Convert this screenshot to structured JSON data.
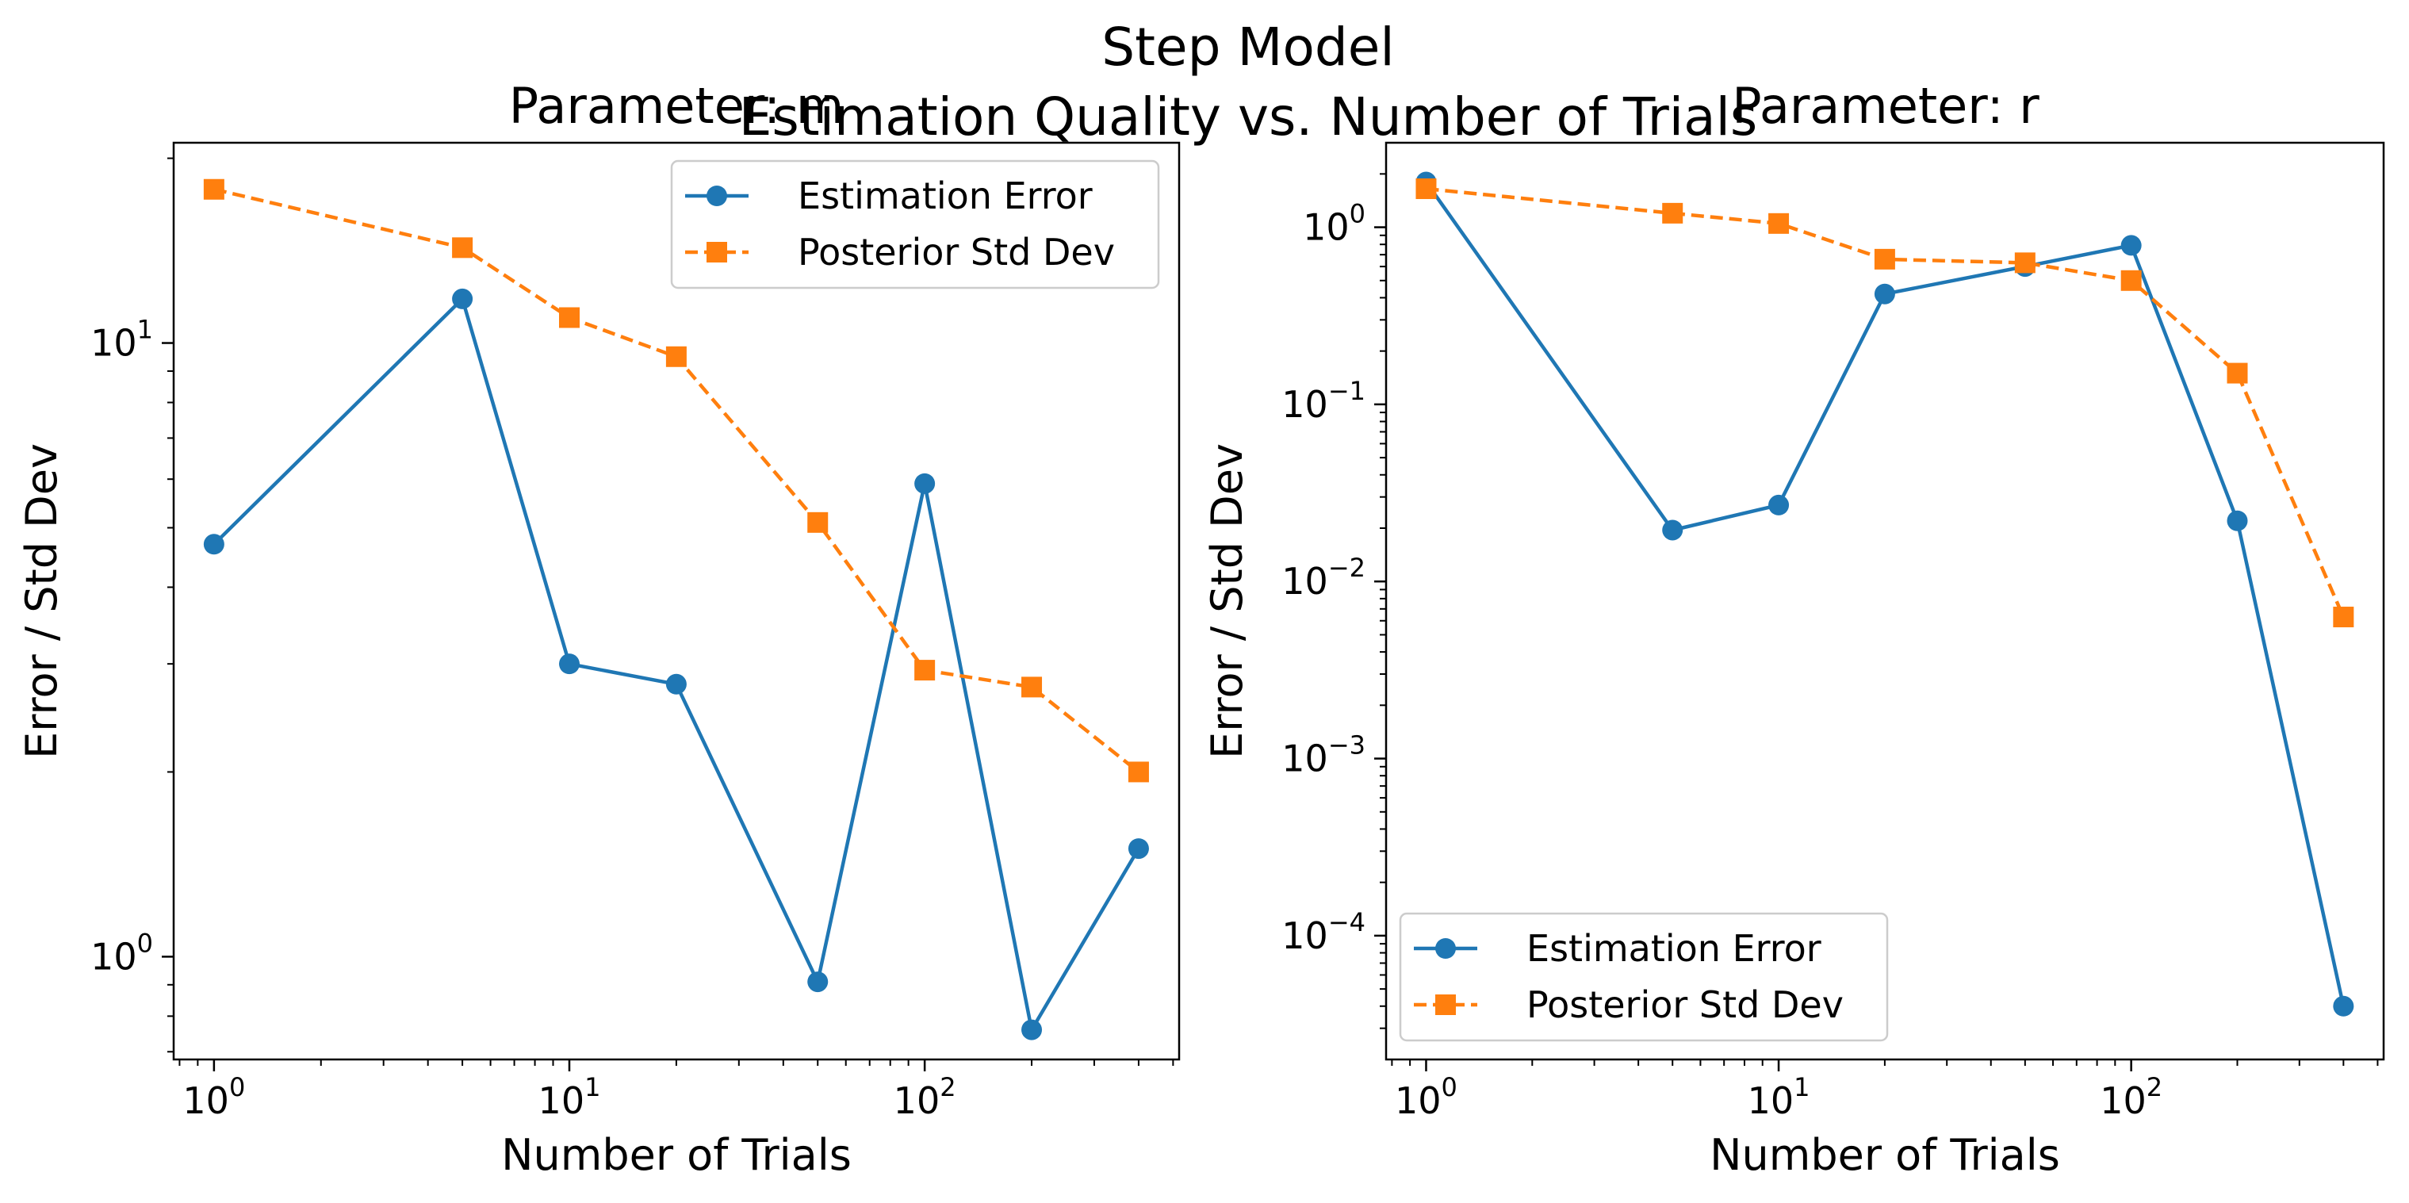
{
  "figure": {
    "title_line1": "Step Model",
    "title_line2": "Estimation Quality vs. Number of Trials"
  },
  "colors": {
    "error": "#1f77b4",
    "std": "#ff7f0e"
  },
  "chart_data": [
    {
      "type": "line",
      "title": "Parameter: m",
      "xlabel": "Number of Trials",
      "ylabel": "Error / Std Dev",
      "xscale": "log",
      "yscale": "log",
      "xlim": [
        0.77,
        520
      ],
      "ylim": [
        0.68,
        21.2
      ],
      "x": [
        1,
        5,
        10,
        20,
        50,
        100,
        200,
        400
      ],
      "x_ticks": [
        {
          "value": 1,
          "base": "10",
          "exp": "0"
        },
        {
          "value": 10,
          "base": "10",
          "exp": "1"
        },
        {
          "value": 100,
          "base": "10",
          "exp": "2"
        }
      ],
      "y_ticks": [
        {
          "value": 1,
          "base": "10",
          "exp": "0"
        },
        {
          "value": 10,
          "base": "10",
          "exp": "1"
        }
      ],
      "grid": false,
      "legend_position": "upper right",
      "series": [
        {
          "name": "Estimation Error",
          "marker": "circle",
          "linestyle": "solid",
          "values": [
            4.7,
            11.8,
            3.0,
            2.78,
            0.91,
            5.9,
            0.76,
            1.5
          ]
        },
        {
          "name": "Posterior Std Dev",
          "marker": "square",
          "linestyle": "dashed",
          "values": [
            17.8,
            14.3,
            11.0,
            9.5,
            5.1,
            2.93,
            2.75,
            2.0
          ]
        }
      ]
    },
    {
      "type": "line",
      "title": "Parameter: r",
      "xlabel": "Number of Trials",
      "ylabel": "Error / Std Dev",
      "xscale": "log",
      "yscale": "log",
      "xlim": [
        0.77,
        520
      ],
      "ylim": [
        2e-05,
        3.0
      ],
      "x": [
        1,
        5,
        10,
        20,
        50,
        100,
        200,
        400
      ],
      "x_ticks": [
        {
          "value": 1,
          "base": "10",
          "exp": "0"
        },
        {
          "value": 10,
          "base": "10",
          "exp": "1"
        },
        {
          "value": 100,
          "base": "10",
          "exp": "2"
        }
      ],
      "y_ticks": [
        {
          "value": 0.0001,
          "base": "10",
          "exp": "−4"
        },
        {
          "value": 0.001,
          "base": "10",
          "exp": "−3"
        },
        {
          "value": 0.01,
          "base": "10",
          "exp": "−2"
        },
        {
          "value": 0.1,
          "base": "10",
          "exp": "−1"
        },
        {
          "value": 1,
          "base": "10",
          "exp": "0"
        }
      ],
      "grid": false,
      "legend_position": "lower left",
      "series": [
        {
          "name": "Estimation Error",
          "marker": "circle",
          "linestyle": "solid",
          "values": [
            1.8,
            0.0195,
            0.027,
            0.42,
            0.6,
            0.79,
            0.022,
            4e-05
          ]
        },
        {
          "name": "Posterior Std Dev",
          "marker": "square",
          "linestyle": "dashed",
          "values": [
            1.65,
            1.2,
            1.05,
            0.66,
            0.63,
            0.5,
            0.15,
            0.0063
          ]
        }
      ]
    }
  ]
}
